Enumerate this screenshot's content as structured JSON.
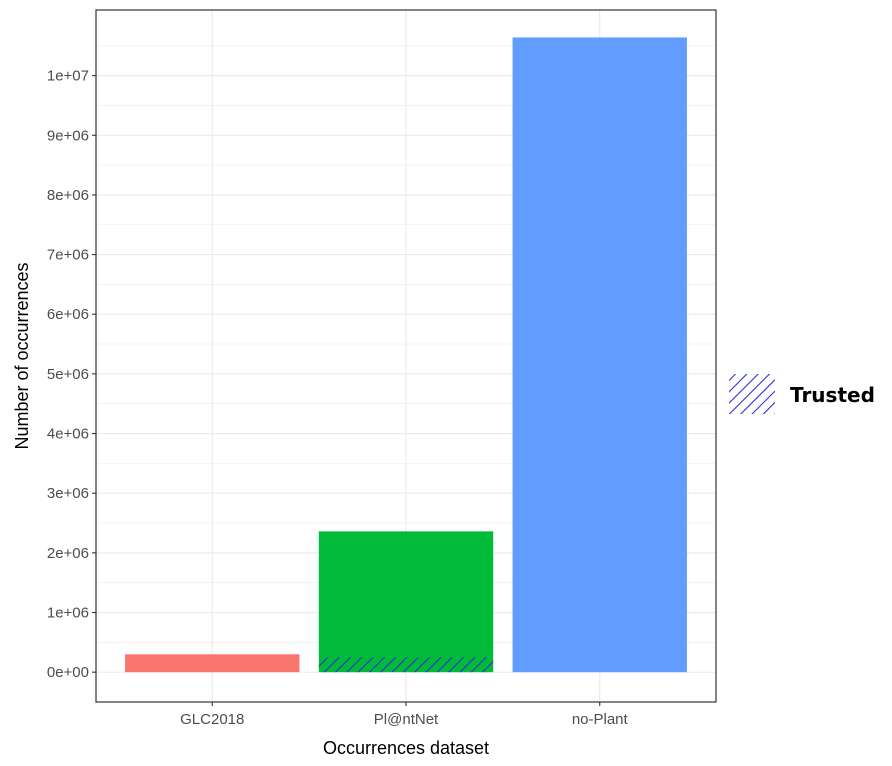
{
  "chart_data": {
    "type": "bar",
    "categories": [
      "GLC2018",
      "Pl@ntNet",
      "no-Plant"
    ],
    "values": [
      300000,
      2360000,
      10640000
    ],
    "colors": [
      "#F8766D",
      "#00BA38",
      "#619CFF"
    ],
    "trusted_values": [
      0,
      250000,
      0
    ],
    "trusted_pattern": {
      "color": "#2f2fd6",
      "style": "diagonal-hatch"
    },
    "xlabel": "Occurrences dataset",
    "ylabel": "Number of occurrences",
    "ylim": [
      -500000,
      11100000
    ],
    "yticks": [
      0,
      1000000,
      2000000,
      3000000,
      4000000,
      5000000,
      6000000,
      7000000,
      8000000,
      9000000,
      10000000
    ],
    "ytick_labels": [
      "0e+00",
      "1e+06",
      "2e+06",
      "3e+06",
      "4e+06",
      "5e+06",
      "6e+06",
      "7e+06",
      "8e+06",
      "9e+06",
      "1e+07"
    ],
    "grid": true,
    "legend": {
      "position": "right",
      "entries": [
        {
          "label": "Trusted"
        }
      ]
    }
  }
}
